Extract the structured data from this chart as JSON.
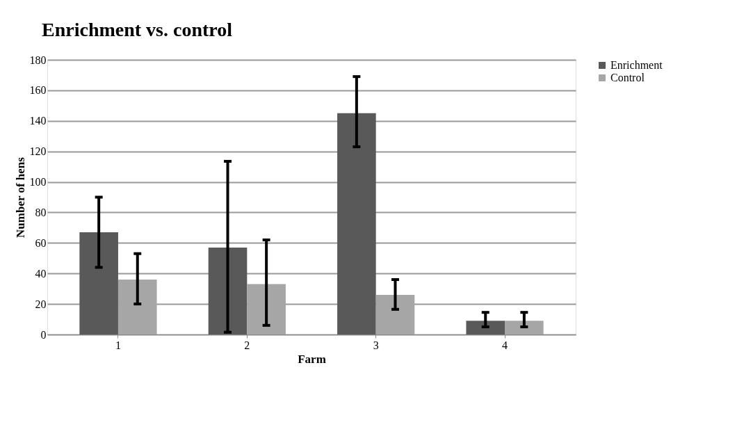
{
  "chart_data": {
    "type": "bar",
    "title": "Enrichment vs. control",
    "xlabel": "Farm",
    "ylabel": "Number of hens",
    "categories": [
      "1",
      "2",
      "3",
      "4"
    ],
    "series": [
      {
        "name": "Enrichment",
        "color": "#595959",
        "values": [
          67,
          57,
          145,
          9
        ],
        "errors": [
          [
            44,
            90
          ],
          [
            1.5,
            113.5
          ],
          [
            123,
            169
          ],
          [
            5,
            14.5
          ]
        ]
      },
      {
        "name": "Control",
        "color": "#a6a6a6",
        "values": [
          36,
          33,
          26,
          9
        ],
        "errors": [
          [
            20,
            53
          ],
          [
            6,
            62
          ],
          [
            16.5,
            36
          ],
          [
            5,
            14.5
          ]
        ]
      }
    ],
    "ylim": [
      0,
      180
    ],
    "yticks": [
      0,
      20,
      40,
      60,
      80,
      100,
      120,
      140,
      160,
      180
    ],
    "grid": "y",
    "legend": "right"
  }
}
